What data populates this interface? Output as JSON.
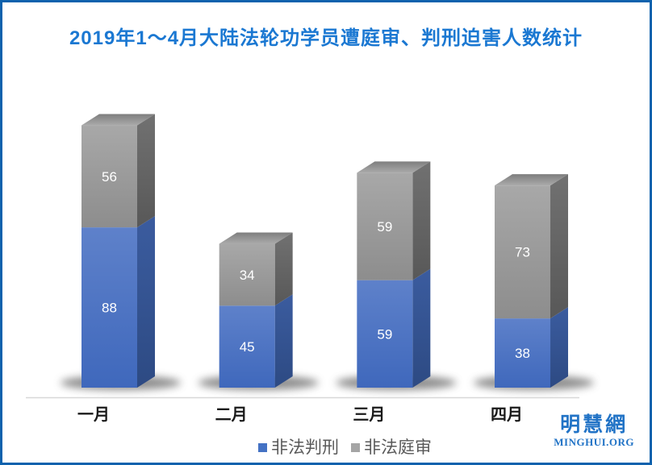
{
  "frame": {
    "border_color": "#0E62AD",
    "background": "#FFFFFF"
  },
  "chart_data": {
    "type": "bar",
    "variant": "3d-stacked-column",
    "title": "2019年1～4月大陆法轮功学员遭庭审、判刑迫害人数统计",
    "title_color": "#1B78D2",
    "categories": [
      "一月",
      "二月",
      "三月",
      "四月"
    ],
    "series": [
      {
        "name": "非法判刑",
        "color": "#4472C4",
        "values": [
          88,
          45,
          59,
          38
        ]
      },
      {
        "name": "非法庭审",
        "color": "#A5A5A5",
        "values": [
          56,
          34,
          59,
          73
        ]
      }
    ],
    "value_labels": "inside-center",
    "value_label_color": "#FFFFFF",
    "legend_position": "bottom",
    "gridlines": false,
    "y_axis_visible": false,
    "x_axis_line_color": "#D8D8D8",
    "category_label_color": "#1A1A1A",
    "ylim": [
      0,
      150
    ]
  },
  "logo": {
    "chinese": "明慧網",
    "domain": "MINGHUI.ORG",
    "color": "#2173C6"
  }
}
